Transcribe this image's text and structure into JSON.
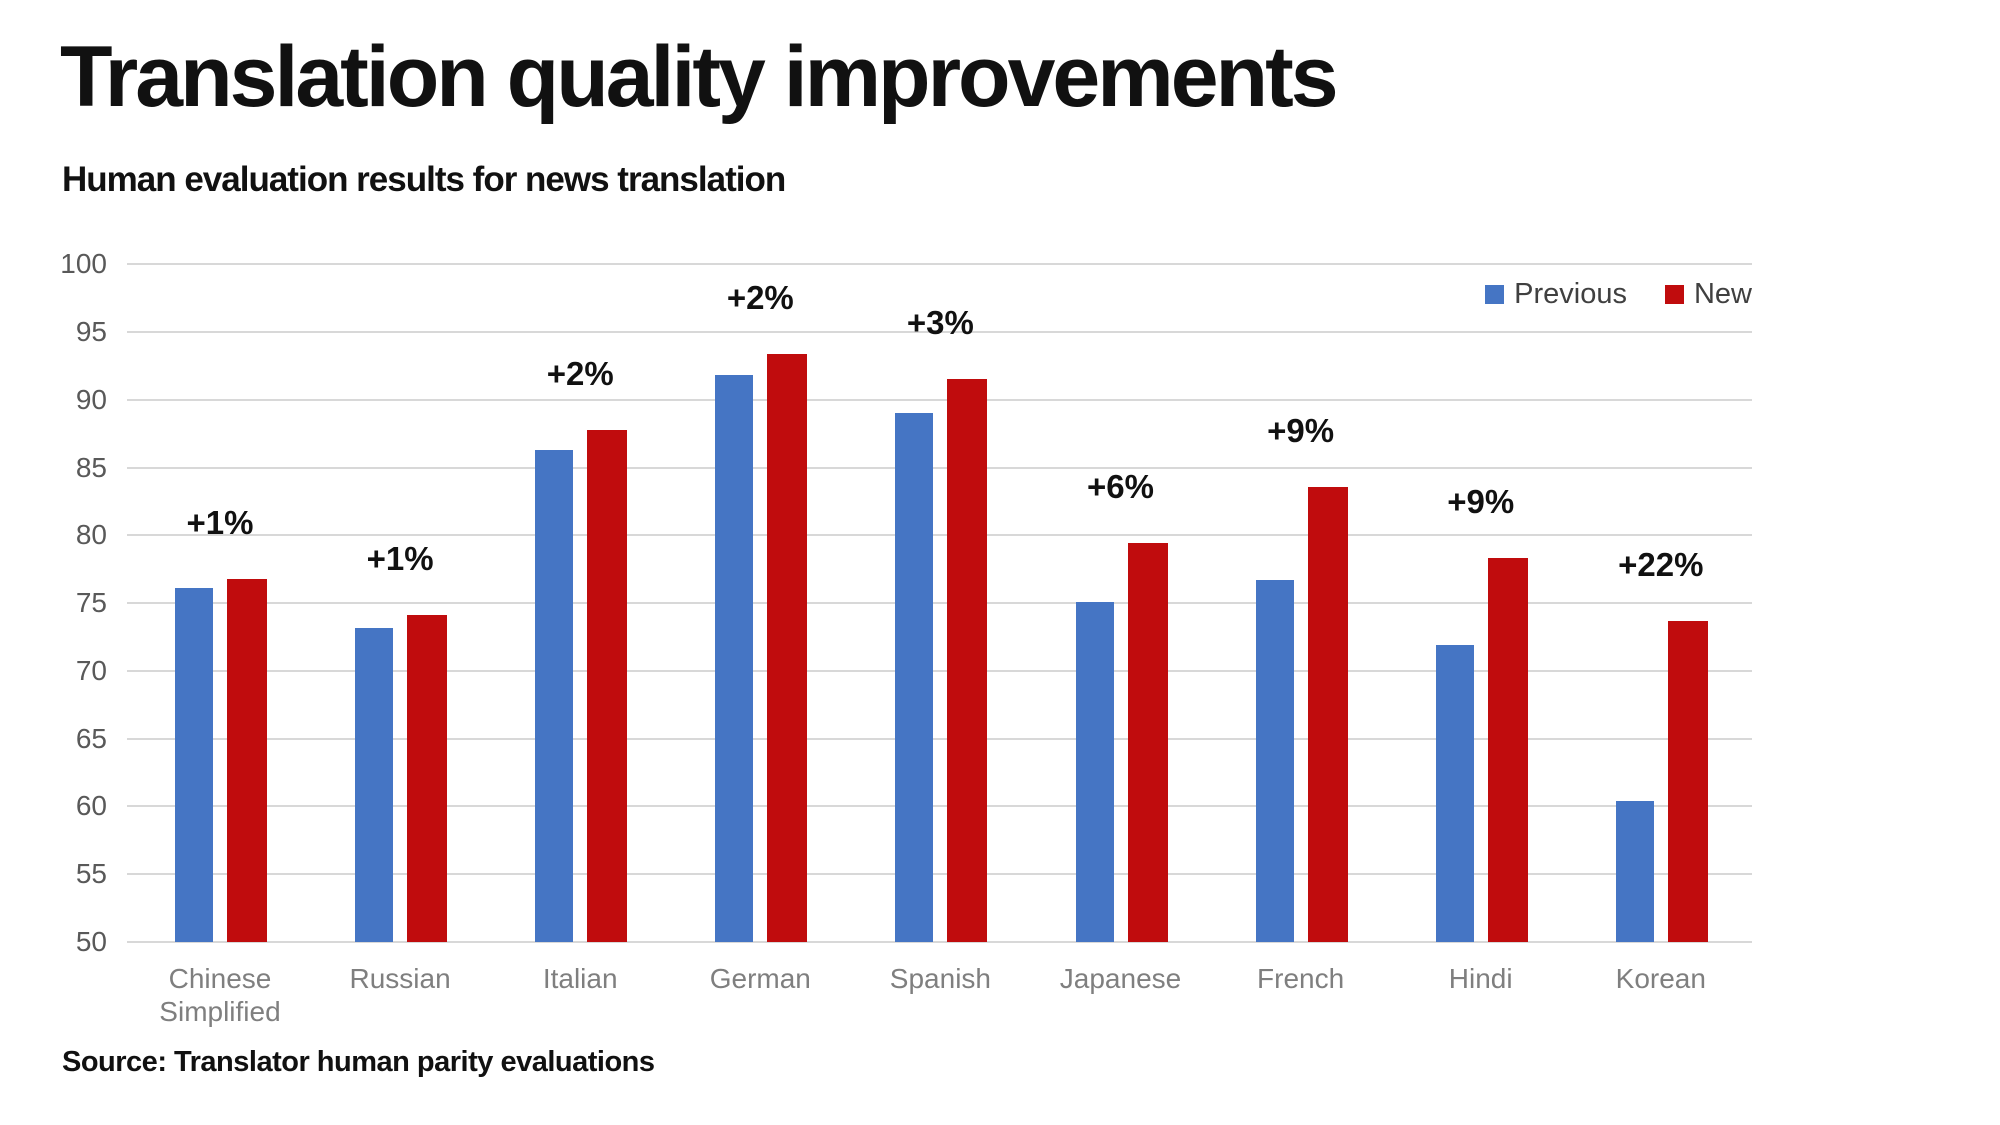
{
  "header": {
    "title": "Translation quality improvements",
    "subtitle": "Human evaluation results for news translation"
  },
  "legend": {
    "previous_label": "Previous",
    "new_label": "New"
  },
  "footer": {
    "source": "Source: Translator human parity evaluations"
  },
  "colors": {
    "previous_blue": "#4575C4",
    "new_red": "#C00C0D",
    "gridline": "#D8D8D8",
    "y_label": "#595959",
    "x_label": "#7F7F7F",
    "annotation": "#111111",
    "legend_text": "#404040"
  },
  "chart_data": {
    "type": "bar",
    "title": "Translation quality improvements",
    "subtitle": "Human evaluation results for news translation",
    "categories": [
      "Chinese Simplified",
      "Russian",
      "Italian",
      "German",
      "Spanish",
      "Japanese",
      "French",
      "Hindi",
      "Korean"
    ],
    "series": [
      {
        "name": "Previous",
        "color": "#4575C4",
        "values": [
          76.1,
          73.2,
          86.3,
          91.8,
          89.0,
          75.1,
          76.7,
          71.9,
          60.4
        ]
      },
      {
        "name": "New",
        "color": "#C00C0D",
        "values": [
          76.8,
          74.1,
          87.8,
          93.4,
          91.5,
          79.4,
          83.6,
          78.3,
          73.7
        ]
      }
    ],
    "improvements": [
      "+1%",
      "+1%",
      "+2%",
      "+2%",
      "+3%",
      "+6%",
      "+9%",
      "+9%",
      "+22%"
    ],
    "xlabel": "",
    "ylabel": "",
    "ylim": [
      50,
      100
    ],
    "ytick_step": 5,
    "yticks": [
      50,
      55,
      60,
      65,
      70,
      75,
      80,
      85,
      90,
      95,
      100
    ],
    "grid": true,
    "legend_position": "top-right",
    "source": "Source: Translator human parity evaluations"
  }
}
